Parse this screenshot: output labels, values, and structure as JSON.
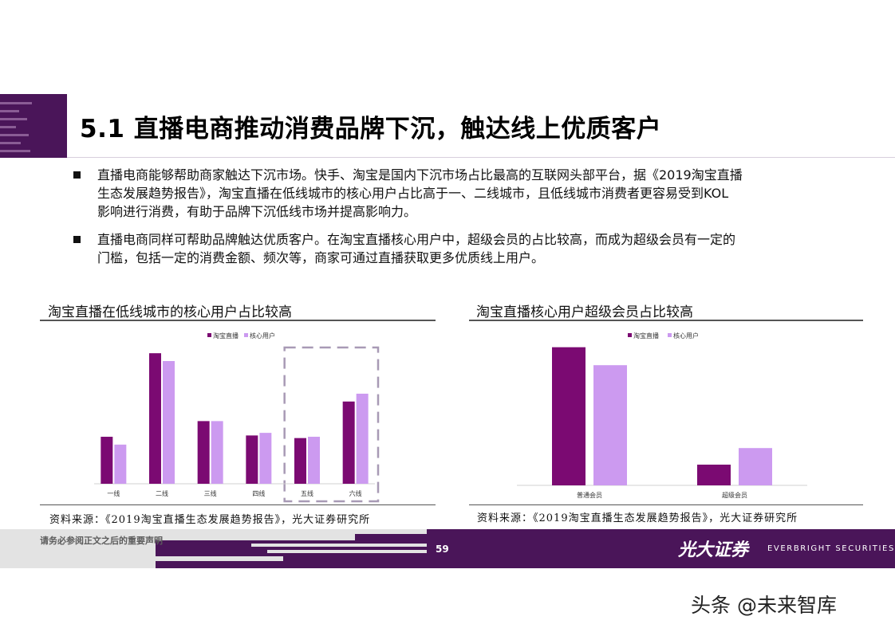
{
  "slide": {
    "title": "5.1 直播电商推动消费品牌下沉，触达线上优质客户",
    "bullets": [
      {
        "lines": [
          "直播电商能够帮助商家触达下沉市场。快手、淘宝是国内下沉市场占比最高的互联网头部平台，据《2019淘宝直播",
          "生态发展趋势报告》，淘宝直播在低线城市的核心用户占比高于一、二线城市，且低线城市消费者更容易受到KOL",
          "影响进行消费，有助于品牌下沉低线市场并提高影响力。"
        ]
      },
      {
        "lines": [
          "直播电商同样可帮助品牌触达优质客户。在淘宝直播核心用户中，超级会员的占比较高，而成为超级会员有一定的",
          "门槛，包括一定的消费金额、频次等，商家可通过直播获取更多优质线上用户。"
        ]
      }
    ]
  },
  "charts": [
    {
      "heading": "淘宝直播在低线城市的核心用户占比较高",
      "source": "资料来源：《2019淘宝直播生态发展趋势报告》，光大证券研究所"
    },
    {
      "heading": "淘宝直播核心用户超级会员占比较高",
      "source": "资料来源：《2019淘宝直播生态发展趋势报告》，光大证券研究所"
    }
  ],
  "chart_data": [
    {
      "type": "bar",
      "categories": [
        "一线",
        "二线",
        "三线",
        "四线",
        "五线",
        "六线"
      ],
      "series": [
        {
          "name": "淘宝直播",
          "values": [
            36,
            100,
            48,
            37,
            35,
            63
          ],
          "color": "#7b0a72"
        },
        {
          "name": "核心用户",
          "values": [
            30,
            94,
            48,
            39,
            36,
            69
          ],
          "color": "#cc9af0"
        }
      ],
      "ylim": [
        0,
        105
      ],
      "legend": "top-center",
      "highlight": [
        "五线",
        "六线"
      ],
      "grid": false
    },
    {
      "type": "bar",
      "categories": [
        "普通会员",
        "超级会员"
      ],
      "series": [
        {
          "name": "淘宝直播",
          "values": [
            100,
            15
          ],
          "color": "#7b0a72"
        },
        {
          "name": "核心用户",
          "values": [
            87,
            27
          ],
          "color": "#cc9af0"
        }
      ],
      "ylim": [
        0,
        105
      ],
      "legend": "top-center",
      "grid": false
    }
  ],
  "footer": {
    "disclaimer": "请务必参阅正文之后的重要声明",
    "page_number": "59",
    "logo_cn": "光大证券",
    "logo_en": "EVERBRIGHT SECURITIES"
  },
  "watermark": "头条 @未来智库",
  "colors": {
    "brand_purple": "#4a1559",
    "series_dark": "#7b0a72",
    "series_light": "#cc9af0"
  }
}
